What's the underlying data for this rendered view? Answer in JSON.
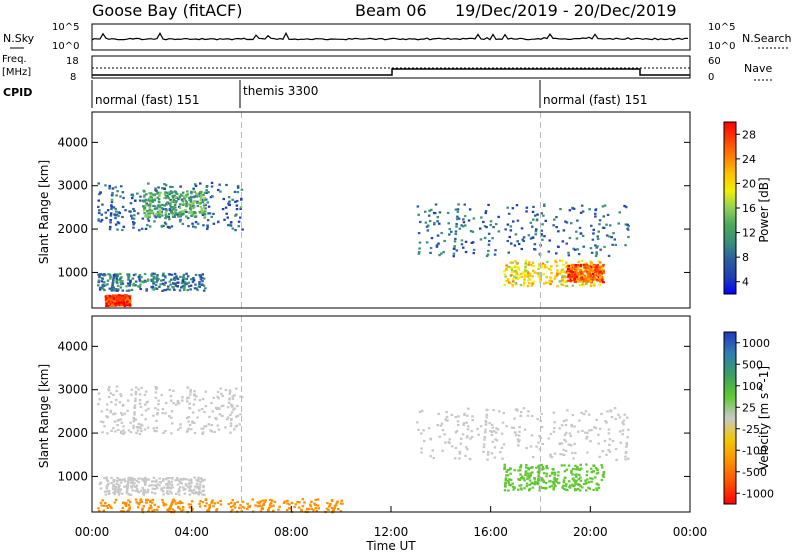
{
  "header": {
    "station": "Goose Bay (fitACF)",
    "beam": "Beam 06",
    "date_range": "19/Dec/2019 - 20/Dec/2019"
  },
  "top_panels": {
    "nsky_label": "N.Sky",
    "nsearch_label": "N.Search",
    "freq_label": "Freq.",
    "freq_unit": "[MHz]",
    "nave_label": "Nave",
    "cpid_label": "CPID",
    "noise_ticks": [
      "10^5",
      "10^0"
    ],
    "noise_ticks_right": [
      "10^5",
      "10^0"
    ],
    "freq_ticks": [
      "18",
      "8"
    ],
    "nave_ticks": [
      "60",
      "0"
    ],
    "cpid_segments": [
      {
        "label": "normal (fast) 151",
        "start_h": 0,
        "end_h": 6
      },
      {
        "label": "themis 3300",
        "start_h": 6,
        "end_h": 18
      },
      {
        "label": "normal (fast) 151",
        "start_h": 18,
        "end_h": 24
      }
    ]
  },
  "chart_data": [
    {
      "type": "heatmap",
      "name": "power",
      "xlabel": "",
      "ylabel": "Slant Range [km]",
      "xlim": [
        0,
        24
      ],
      "ylim": [
        180,
        4700
      ],
      "yticks": [
        1000,
        2000,
        3000,
        4000
      ],
      "colorbar": {
        "label": "Power [dB]",
        "ticks": [
          "28",
          "24",
          "20",
          "16",
          "12",
          "8",
          "4"
        ],
        "colors": [
          "#0000ff",
          "#1f3fb3",
          "#2b5ea0",
          "#3a8f7a",
          "#4aa85a",
          "#8fd05a",
          "#f0f000",
          "#ffbf00",
          "#ff7f00",
          "#ff3f00",
          "#ff0000"
        ]
      },
      "regions": [
        {
          "x": [
            0.2,
            6.0
          ],
          "y": [
            2000,
            3100
          ],
          "value": 8
        },
        {
          "x": [
            2.0,
            4.5
          ],
          "y": [
            2300,
            2900
          ],
          "value": 13
        },
        {
          "x": [
            0.2,
            4.5
          ],
          "y": [
            600,
            1000
          ],
          "value": 9
        },
        {
          "x": [
            0.5,
            1.5
          ],
          "y": [
            250,
            500
          ],
          "value": 28
        },
        {
          "x": [
            13.0,
            21.5
          ],
          "y": [
            1400,
            2600
          ],
          "value": 8
        },
        {
          "x": [
            16.5,
            20.5
          ],
          "y": [
            700,
            1300
          ],
          "value": 20
        },
        {
          "x": [
            19.0,
            20.5
          ],
          "y": [
            800,
            1200
          ],
          "value": 26
        }
      ]
    },
    {
      "type": "heatmap",
      "name": "velocity",
      "xlabel": "Time UT",
      "ylabel": "Slant Range [km]",
      "xlim": [
        0,
        24
      ],
      "ylim": [
        180,
        4700
      ],
      "xticks": [
        "00:00",
        "04:00",
        "08:00",
        "12:00",
        "16:00",
        "20:00",
        "00:00"
      ],
      "yticks": [
        1000,
        2000,
        3000,
        4000
      ],
      "colorbar": {
        "label": "Velocity [m s^-1]",
        "ticks": [
          "1000",
          "500",
          "100",
          "25",
          "-25",
          "-100",
          "-500",
          "-1000"
        ],
        "colors": [
          "#2038c0",
          "#2e7fb0",
          "#3aa060",
          "#60c830",
          "#c8c8c8",
          "#f0c800",
          "#ff9000",
          "#ff5000",
          "#ff0000"
        ]
      },
      "regions": [
        {
          "x": [
            0.2,
            6.0
          ],
          "y": [
            2000,
            3100
          ],
          "value": 0
        },
        {
          "x": [
            0.2,
            4.5
          ],
          "y": [
            600,
            1000
          ],
          "value": 0
        },
        {
          "x": [
            0.2,
            10.0
          ],
          "y": [
            200,
            500
          ],
          "value": -150
        },
        {
          "x": [
            13.0,
            21.5
          ],
          "y": [
            1400,
            2600
          ],
          "value": 0
        },
        {
          "x": [
            16.5,
            20.5
          ],
          "y": [
            700,
            1300
          ],
          "value": 80
        }
      ]
    }
  ]
}
